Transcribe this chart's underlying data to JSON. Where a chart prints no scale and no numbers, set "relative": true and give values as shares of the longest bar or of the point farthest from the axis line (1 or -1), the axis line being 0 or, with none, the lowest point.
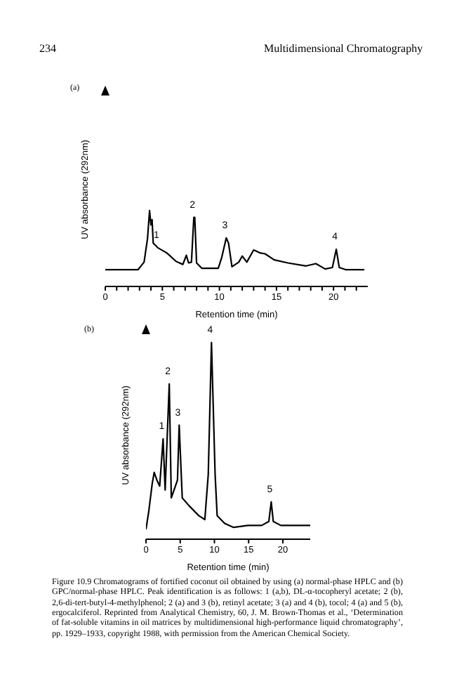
{
  "chart_data": [
    {
      "type": "line",
      "relative": true,
      "xlabel": "Retention time (min)",
      "ylabel": "UV absorbance (292nm)",
      "xlim": [
        0,
        23
      ],
      "xticks": [
        0,
        {
          "value": 1,
          "label": null
        },
        {
          "value": 2,
          "label": null
        },
        {
          "value": 3,
          "label": null
        },
        {
          "value": 4,
          "label": null
        },
        5,
        {
          "value": 6,
          "label": null
        },
        {
          "value": 7,
          "label": null
        },
        {
          "value": 8,
          "label": null
        },
        {
          "value": 9,
          "label": null
        },
        10,
        {
          "value": 11,
          "label": null
        },
        {
          "value": 12,
          "label": null
        },
        {
          "value": 13,
          "label": null
        },
        {
          "value": 14,
          "label": null
        },
        15,
        {
          "value": 16,
          "label": null
        },
        {
          "value": 17,
          "label": null
        },
        {
          "value": 18,
          "label": null
        },
        {
          "value": 19,
          "label": null
        },
        20,
        {
          "value": 21,
          "label": null
        },
        {
          "value": 22,
          "label": null
        }
      ],
      "tick_labels": "x",
      "grid": false,
      "legend": false,
      "marker": "none",
      "line_style": "solid",
      "x": [
        0,
        2.86,
        3.4,
        3.7,
        3.88,
        4.0,
        4.1,
        4.2,
        4.6,
        5.4,
        6.2,
        6.8,
        7.1,
        7.3,
        7.55,
        7.76,
        7.84,
        8.0,
        8.45,
        9.9,
        10.2,
        10.6,
        10.8,
        11.1,
        11.7,
        12.0,
        12.4,
        13.0,
        13.6,
        14.0,
        14.8,
        16.0,
        17.6,
        18.45,
        19.27,
        19.9,
        20.24,
        20.5,
        21.1,
        22.7
      ],
      "series": [
        {
          "color": "#000000",
          "values": [
            0.22,
            0.22,
            0.32,
            0.63,
            1.0,
            0.81,
            0.88,
            0.57,
            0.51,
            0.44,
            0.33,
            0.29,
            0.41,
            0.31,
            0.32,
            0.91,
            0.91,
            0.31,
            0.24,
            0.24,
            0.38,
            0.64,
            0.57,
            0.26,
            0.32,
            0.4,
            0.32,
            0.48,
            0.44,
            0.43,
            0.35,
            0.31,
            0.27,
            0.3,
            0.23,
            0.25,
            0.49,
            0.25,
            0.22,
            0.22
          ]
        }
      ],
      "annotations": [
        "234",
        "Multidimensional Chromatography",
        "(a)",
        {
          "text": "1",
          "x": 4.6,
          "y": 0.51
        },
        {
          "text": "2",
          "x": 7.76,
          "y": 0.91
        },
        {
          "text": "3",
          "x": 10.6,
          "y": 0.64
        },
        {
          "text": "4",
          "x": 20.24,
          "y": 0.49
        }
      ]
    },
    {
      "type": "line",
      "relative": true,
      "xlabel": "Retention time (min)",
      "ylabel": "UV absorbance (292nm)",
      "xlim": [
        0,
        24
      ],
      "xticks": [
        0,
        5,
        10,
        15,
        20
      ],
      "tick_labels": "x",
      "grid": false,
      "legend": false,
      "marker": "none",
      "line_style": "solid",
      "x": [
        0,
        0.4,
        0.9,
        1.2,
        1.6,
        2.0,
        2.5,
        2.8,
        3.4,
        3.7,
        4.6,
        4.85,
        5.3,
        6.3,
        7.7,
        8.6,
        9.1,
        9.57,
        10.1,
        10.4,
        11.5,
        12.8,
        14.9,
        16.9,
        17.95,
        18.3,
        18.6,
        19.7,
        24
      ],
      "series": [
        {
          "color": "#000000",
          "values": [
            0.05,
            0.14,
            0.28,
            0.34,
            0.3,
            0.27,
            0.51,
            0.25,
            0.79,
            0.21,
            0.3,
            0.58,
            0.21,
            0.17,
            0.12,
            0.1,
            0.33,
            1.0,
            0.33,
            0.12,
            0.08,
            0.06,
            0.07,
            0.07,
            0.09,
            0.19,
            0.09,
            0.07,
            0.07
          ]
        }
      ],
      "annotations": [
        "(b)",
        {
          "text": "1",
          "x": 2.5,
          "y": 0.51
        },
        {
          "text": "2",
          "x": 3.4,
          "y": 0.79
        },
        {
          "text": "3",
          "x": 4.85,
          "y": 0.58
        },
        {
          "text": "4",
          "x": 9.57,
          "y": 1.0
        },
        {
          "text": "5",
          "x": 18.3,
          "y": 0.19
        },
        "Figure 10.9  Chromatograms of fortified coconut oil obtained by using (a) normal-phase HPLC and (b) GPC/normal-phase HPLC. Peak identification is as follows: 1 (a,b), DL-α-tocopheryl acetate; 2 (b), 2,6-di-tert-butyl-4-methylphenol; 2 (a) and 3 (b), retinyl acetate; 3 (a) and 4 (b), tocol; 4 (a) and 5 (b), ergocalciferol. Reprinted from Analytical Chemistry, 60, J. M. Brown-Thomas et al., ‘Determination of fat-soluble vitamins in oil matrices by multidimensional high-performance liquid chromatography’, pp. 1929–1933, copyright 1988, with permission from the American Chemical Society."
      ]
    }
  ]
}
